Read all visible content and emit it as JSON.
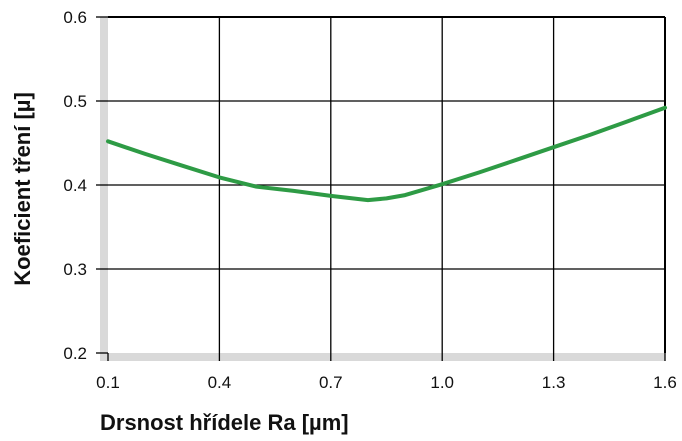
{
  "chart_data": {
    "type": "line",
    "title": "",
    "xlabel": "Drsnost hřídele Ra [µm]",
    "ylabel": "Koeficient tření [µ]",
    "x_ticks": [
      "0.1",
      "0.4",
      "0.7",
      "1.0",
      "1.3",
      "1.6"
    ],
    "y_ticks": [
      "0.2",
      "0.3",
      "0.4",
      "0.5",
      "0.6"
    ],
    "xlim": [
      0.1,
      1.6
    ],
    "ylim": [
      0.2,
      0.6
    ],
    "grid": true,
    "legend": "none",
    "series": [
      {
        "color": "#2e9b45",
        "x": [
          0.1,
          0.2,
          0.3,
          0.4,
          0.5,
          0.6,
          0.7,
          0.8,
          0.85,
          0.9,
          1.0,
          1.1,
          1.2,
          1.3,
          1.4,
          1.5,
          1.6
        ],
        "y": [
          0.452,
          0.437,
          0.423,
          0.409,
          0.398,
          0.393,
          0.387,
          0.382,
          0.384,
          0.388,
          0.401,
          0.415,
          0.43,
          0.445,
          0.46,
          0.476,
          0.492
        ]
      }
    ]
  },
  "colors": {
    "line": "#2e9b45",
    "grid": "#000000",
    "frame_gray": "#d9d9d9",
    "text": "#111111"
  }
}
